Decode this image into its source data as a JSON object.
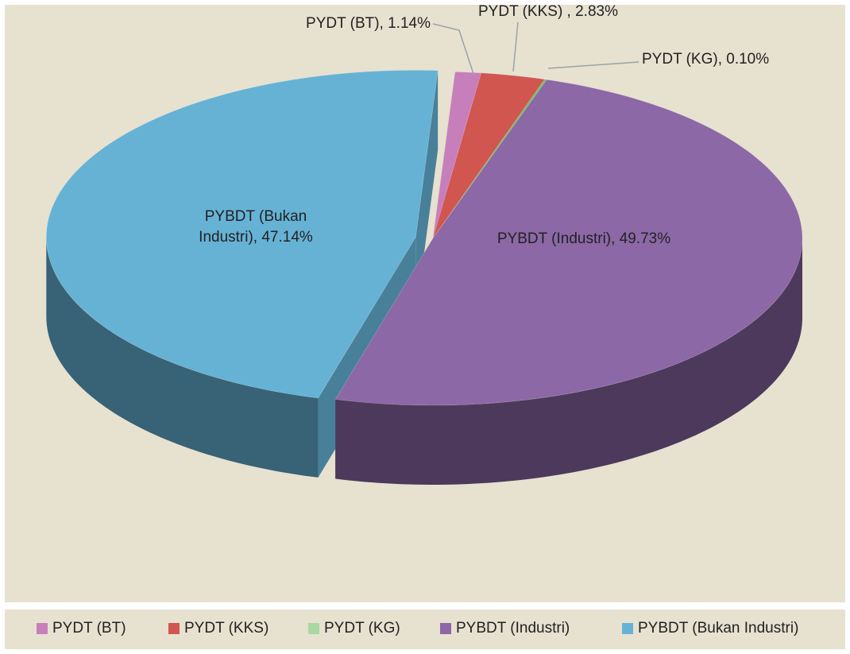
{
  "chart_data": {
    "type": "pie",
    "categories": [
      "PYDT (BT)",
      "PYDT (KKS)",
      "PYDT (KG)",
      "PYBDT (Industri)",
      "PYBDT (Bukan Industri)"
    ],
    "values": [
      1.14,
      2.83,
      0.1,
      49.73,
      47.14
    ],
    "value_labels": [
      "PYDT (BT), 1.14%",
      "PYDT (KKS) , 2.83%",
      "PYDT (KG), 0.10%",
      "PYBDT (Industri), 49.73%",
      "PYBDT (Bukan Industri), 47.14%"
    ],
    "colors": [
      "#c77fbb",
      "#d0564f",
      "#6cc35f",
      "#8c68a6",
      "#66b2d5"
    ],
    "legend_colors": [
      "#c77fbb",
      "#d0564f",
      "#a9d8a3",
      "#8c68a6",
      "#66b2d5"
    ],
    "legend": "bottom"
  }
}
